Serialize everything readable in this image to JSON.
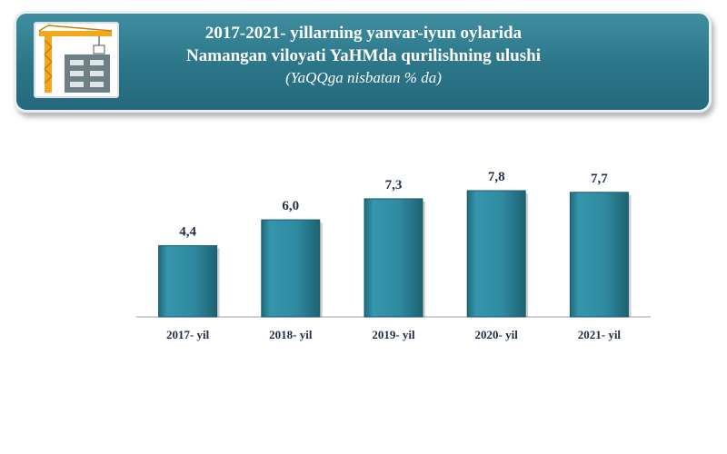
{
  "header": {
    "title_line1": "2017-2021- yillarning yanvar-iyun oylarida",
    "title_line2": "Namangan viloyati YaHMda qurilishning ulushi",
    "subtitle": "(YaQQga nisbatan % da)",
    "icon": "building-crane-icon"
  },
  "chart_data": {
    "type": "bar",
    "categories": [
      "2017- yil",
      "2018- yil",
      "2019- yil",
      "2020- yil",
      "2021- yil"
    ],
    "values": [
      4.4,
      6.0,
      7.3,
      7.8,
      7.7
    ],
    "value_labels": [
      "4,4",
      "6,0",
      "7,3",
      "7,8",
      "7,7"
    ],
    "title": "2017-2021- yillarning yanvar-iyun oylarida Namangan viloyati YaHMda qurilishning ulushi",
    "subtitle": "(YaQQga nisbatan % da)",
    "xlabel": "",
    "ylabel": "",
    "ylim": [
      0,
      8.5
    ],
    "grid": false,
    "legend": "none",
    "bar_color": "#2f8aa0"
  }
}
